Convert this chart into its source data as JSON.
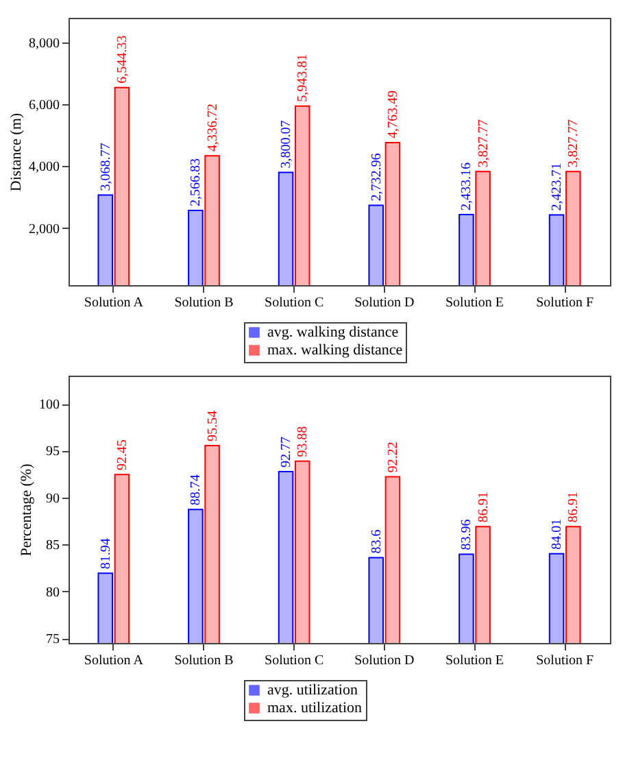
{
  "chart_data": [
    {
      "type": "bar",
      "categories": [
        "Solution A",
        "Solution B",
        "Solution C",
        "Solution D",
        "Solution E",
        "Solution F"
      ],
      "ylabel": "Distance (m)",
      "ylim": [
        150,
        8800
      ],
      "yticks": [
        {
          "value": 2000,
          "label": "2,000"
        },
        {
          "value": 4000,
          "label": "4,000"
        },
        {
          "value": 6000,
          "label": "6,000"
        },
        {
          "value": 8000,
          "label": "8,000"
        }
      ],
      "grid": false,
      "legend": "bottom",
      "series": [
        {
          "name": "avg. walking distance",
          "color": "#0000ff",
          "values": [
            3068.77,
            2566.83,
            3800.07,
            2732.96,
            2433.16,
            2423.71
          ],
          "value_labels": [
            "3,068.77",
            "2,566.83",
            "3,800.07",
            "2,732.96",
            "2,433.16",
            "2,423.71"
          ]
        },
        {
          "name": "max. walking distance",
          "color": "#ff0000",
          "values": [
            6544.33,
            4336.72,
            5943.81,
            4763.49,
            3827.77,
            3827.77
          ],
          "value_labels": [
            "6,544.33",
            "4,336.72",
            "5,943.81",
            "4,763.49",
            "3,827.77",
            "3,827.77"
          ]
        }
      ]
    },
    {
      "type": "bar",
      "categories": [
        "Solution A",
        "Solution B",
        "Solution C",
        "Solution D",
        "Solution E",
        "Solution F"
      ],
      "ylabel": "Percentage (%)",
      "ylim": [
        74.5,
        103
      ],
      "yticks": [
        75,
        80,
        85,
        90,
        95,
        100
      ],
      "grid": false,
      "legend": "bottom",
      "data_labels": true,
      "series": [
        {
          "name": "avg. utilization",
          "color": "#0000ff",
          "values": [
            81.94,
            88.74,
            92.77,
            83.6,
            83.96,
            84.01
          ]
        },
        {
          "name": "max. utilization",
          "color": "#ff0000",
          "values": [
            92.45,
            95.54,
            93.88,
            92.22,
            86.91,
            86.91
          ]
        }
      ]
    }
  ]
}
